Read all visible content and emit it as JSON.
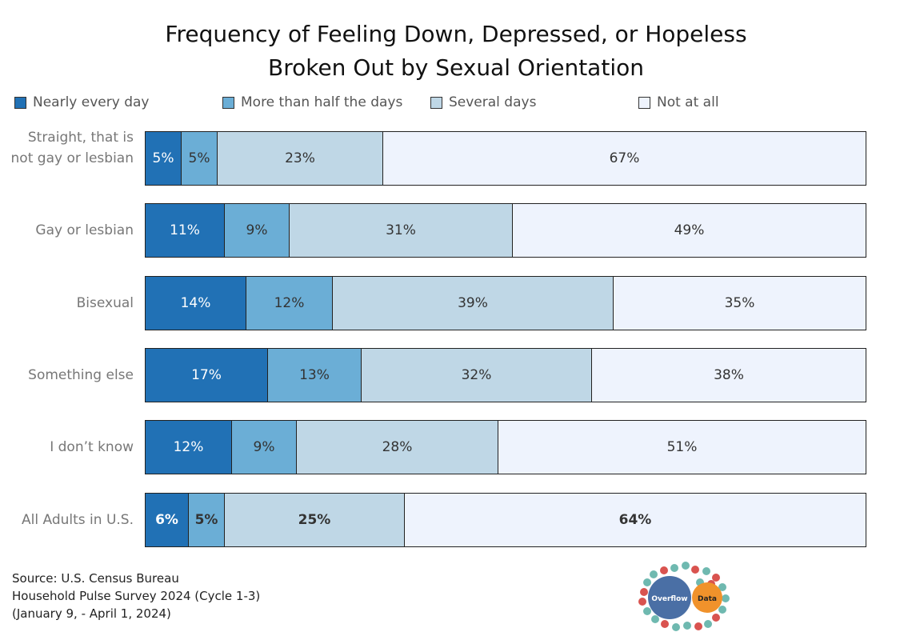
{
  "chart_data": {
    "type": "bar",
    "orientation": "horizontal-stacked-100",
    "title": "Frequency of Feeling Down, Depressed, or Hopeless",
    "subtitle": "Broken Out by Sexual Orientation",
    "legend_placement": "top",
    "categories": [
      "Straight, that is not gay or lesbian",
      "Gay or lesbian",
      "Bisexual",
      "Something else",
      "I don’t know",
      "All Adults in U.S."
    ],
    "series": [
      {
        "name": "Nearly every day",
        "color": "#2171b5",
        "values": [
          5,
          11,
          14,
          17,
          12,
          6
        ]
      },
      {
        "name": "More than half the days",
        "color": "#6baed6",
        "values": [
          5,
          9,
          12,
          13,
          9,
          5
        ]
      },
      {
        "name": "Several days",
        "color": "#bfd7e6",
        "values": [
          23,
          31,
          39,
          32,
          28,
          25
        ]
      },
      {
        "name": "Not at all",
        "color": "#eef3fd",
        "values": [
          67,
          49,
          35,
          38,
          51,
          64
        ]
      }
    ],
    "unit": "%"
  },
  "source": [
    "Source: U.S. Census Bureau",
    "Household Pulse Survey 2024 (Cycle 1-3)",
    "(January  9, - April 1, 2024)"
  ],
  "logo": {
    "text1": "Overflow",
    "text2": "Data"
  }
}
